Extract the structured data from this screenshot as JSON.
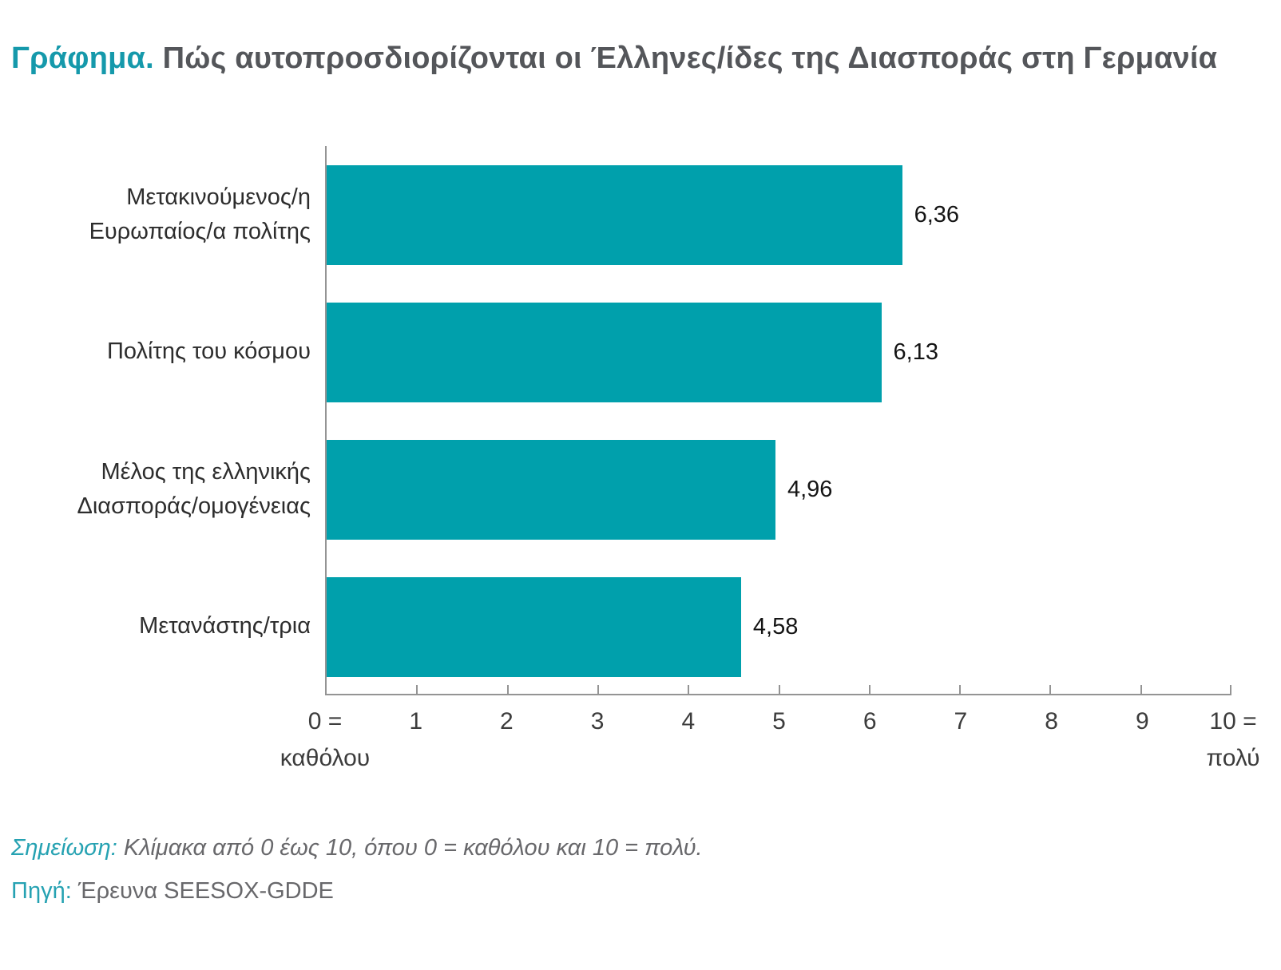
{
  "title": {
    "prefix": "Γράφημα.",
    "text": "Πώς αυτοπροσδιορίζονται οι Έλληνες/ίδες της Διασποράς στη Γερμανία"
  },
  "chart_data": {
    "type": "bar",
    "orientation": "horizontal",
    "title": "Πώς αυτοπροσδιορίζονται οι Έλληνες/ίδες της Διασποράς στη Γερμανία",
    "categories": [
      "Μετακινούμενος/η Ευρωπαίος/α πολίτης",
      "Πολίτης του κόσμου",
      "Μέλος της ελληνικής Διασποράς/ομογένειας",
      "Μετανάστης/τρια"
    ],
    "category_lines": [
      [
        "Μετακινούμενος/η",
        "Ευρωπαίος/α πολίτης"
      ],
      [
        "Πολίτης του κόσμου"
      ],
      [
        "Μέλος της ελληνικής",
        "Διασποράς/ομογένειας"
      ],
      [
        "Μετανάστης/τρια"
      ]
    ],
    "values": [
      6.36,
      6.13,
      4.96,
      4.58
    ],
    "value_labels": [
      "6,36",
      "6,13",
      "4,96",
      "4,58"
    ],
    "xlim": [
      0,
      10
    ],
    "x_ticks": [
      {
        "value": 0,
        "label": "0 =",
        "sub": "καθόλου"
      },
      {
        "value": 1,
        "label": "1"
      },
      {
        "value": 2,
        "label": "2"
      },
      {
        "value": 3,
        "label": "3"
      },
      {
        "value": 4,
        "label": "4"
      },
      {
        "value": 5,
        "label": "5"
      },
      {
        "value": 6,
        "label": "6"
      },
      {
        "value": 7,
        "label": "7"
      },
      {
        "value": 8,
        "label": "8"
      },
      {
        "value": 9,
        "label": "9"
      },
      {
        "value": 10,
        "label": "10 =",
        "sub": "πολύ"
      }
    ],
    "bar_color": "#00A0AC",
    "axis_color": "#949494",
    "grid": false,
    "legend": false
  },
  "note": {
    "label": "Σημείωση:",
    "text": "Κλίμακα από 0 έως 10, όπου 0 = καθόλου και 10 = πολύ."
  },
  "source": {
    "label": "Πηγή:",
    "text": "Έρευνα SEESOX-GDDE"
  },
  "colors": {
    "accent_teal": "#1599AB",
    "title_gray": "#54565A",
    "label_dark": "#2D2D2D",
    "note_gray": "#68686B"
  }
}
